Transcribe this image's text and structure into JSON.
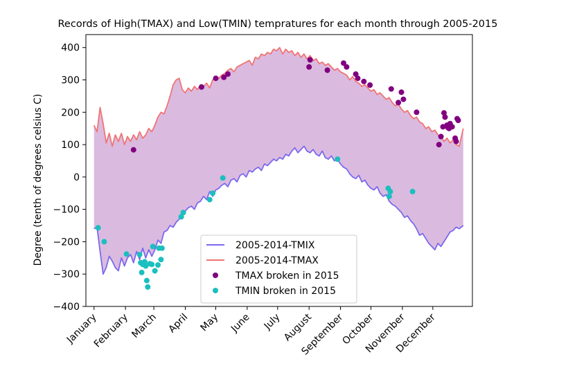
{
  "chart_data": {
    "type": "line",
    "title": "Records of High(TMAX) and Low(TMIN) tempratures for each month through 2005-2015",
    "xlabel": "",
    "ylabel": "Degree (tenth of degrees celsius C)",
    "ylim": [
      -400,
      440
    ],
    "xlim": [
      -8,
      373
    ],
    "y_ticks": [
      -400,
      -300,
      -200,
      -100,
      0,
      100,
      200,
      300,
      400
    ],
    "month_ticks": [
      {
        "label": "January",
        "day": 0
      },
      {
        "label": "February",
        "day": 31
      },
      {
        "label": "March",
        "day": 59
      },
      {
        "label": "April",
        "day": 90
      },
      {
        "label": "May",
        "day": 120
      },
      {
        "label": "June",
        "day": 151
      },
      {
        "label": "July",
        "day": 181
      },
      {
        "label": "August",
        "day": 212
      },
      {
        "label": "September",
        "day": 243
      },
      {
        "label": "October",
        "day": 273
      },
      {
        "label": "November",
        "day": 304
      },
      {
        "label": "December",
        "day": 334
      }
    ],
    "colors": {
      "tmin_line": "#7b68ee",
      "tmax_line": "#f07474",
      "fill": "#dbbadf",
      "tmax_points": "#800080",
      "tmin_points": "#1bbfbf"
    },
    "grid": false,
    "legend_position": "lower-center",
    "series": [
      {
        "name": "2005-2014-TMIX",
        "kind": "line",
        "points": [
          [
            0,
            -160
          ],
          [
            3,
            -155
          ],
          [
            6,
            -230
          ],
          [
            9,
            -300
          ],
          [
            12,
            -280
          ],
          [
            15,
            -245
          ],
          [
            18,
            -260
          ],
          [
            21,
            -280
          ],
          [
            24,
            -290
          ],
          [
            27,
            -250
          ],
          [
            30,
            -275
          ],
          [
            33,
            -250
          ],
          [
            36,
            -240
          ],
          [
            39,
            -265
          ],
          [
            42,
            -230
          ],
          [
            45,
            -255
          ],
          [
            48,
            -220
          ],
          [
            51,
            -250
          ],
          [
            54,
            -225
          ],
          [
            57,
            -245
          ],
          [
            60,
            -225
          ],
          [
            63,
            -195
          ],
          [
            66,
            -205
          ],
          [
            69,
            -170
          ],
          [
            72,
            -165
          ],
          [
            75,
            -150
          ],
          [
            78,
            -155
          ],
          [
            81,
            -140
          ],
          [
            84,
            -130
          ],
          [
            87,
            -115
          ],
          [
            90,
            -105
          ],
          [
            93,
            -95
          ],
          [
            96,
            -90
          ],
          [
            99,
            -100
          ],
          [
            102,
            -80
          ],
          [
            105,
            -75
          ],
          [
            108,
            -60
          ],
          [
            111,
            -70
          ],
          [
            114,
            -45
          ],
          [
            117,
            -60
          ],
          [
            120,
            -40
          ],
          [
            123,
            -35
          ],
          [
            126,
            -25
          ],
          [
            129,
            -20
          ],
          [
            132,
            -30
          ],
          [
            135,
            -10
          ],
          [
            138,
            -5
          ],
          [
            141,
            -15
          ],
          [
            144,
            5
          ],
          [
            147,
            10
          ],
          [
            150,
            0
          ],
          [
            153,
            20
          ],
          [
            156,
            15
          ],
          [
            159,
            25
          ],
          [
            162,
            30
          ],
          [
            165,
            20
          ],
          [
            168,
            40
          ],
          [
            171,
            35
          ],
          [
            174,
            45
          ],
          [
            177,
            55
          ],
          [
            180,
            50
          ],
          [
            183,
            60
          ],
          [
            186,
            55
          ],
          [
            189,
            70
          ],
          [
            192,
            65
          ],
          [
            195,
            80
          ],
          [
            198,
            90
          ],
          [
            201,
            75
          ],
          [
            204,
            85
          ],
          [
            207,
            95
          ],
          [
            210,
            80
          ],
          [
            213,
            75
          ],
          [
            216,
            85
          ],
          [
            219,
            70
          ],
          [
            222,
            65
          ],
          [
            225,
            80
          ],
          [
            228,
            60
          ],
          [
            231,
            55
          ],
          [
            234,
            65
          ],
          [
            237,
            50
          ],
          [
            240,
            55
          ],
          [
            243,
            40
          ],
          [
            246,
            30
          ],
          [
            249,
            25
          ],
          [
            252,
            10
          ],
          [
            255,
            0
          ],
          [
            258,
            -5
          ],
          [
            261,
            5
          ],
          [
            264,
            -15
          ],
          [
            267,
            -10
          ],
          [
            270,
            -25
          ],
          [
            273,
            -35
          ],
          [
            276,
            -40
          ],
          [
            279,
            -30
          ],
          [
            282,
            -50
          ],
          [
            285,
            -60
          ],
          [
            288,
            -55
          ],
          [
            291,
            -75
          ],
          [
            294,
            -85
          ],
          [
            297,
            -90
          ],
          [
            300,
            -100
          ],
          [
            303,
            -110
          ],
          [
            306,
            -125
          ],
          [
            309,
            -120
          ],
          [
            312,
            -135
          ],
          [
            315,
            -145
          ],
          [
            318,
            -160
          ],
          [
            321,
            -180
          ],
          [
            324,
            -175
          ],
          [
            327,
            -190
          ],
          [
            330,
            -205
          ],
          [
            333,
            -215
          ],
          [
            336,
            -225
          ],
          [
            339,
            -205
          ],
          [
            342,
            -215
          ],
          [
            345,
            -200
          ],
          [
            348,
            -185
          ],
          [
            351,
            -170
          ],
          [
            354,
            -165
          ],
          [
            357,
            -155
          ],
          [
            360,
            -160
          ],
          [
            364,
            -150
          ]
        ]
      },
      {
        "name": "2005-2014-TMAX",
        "kind": "line",
        "points": [
          [
            0,
            160
          ],
          [
            3,
            140
          ],
          [
            6,
            215
          ],
          [
            9,
            165
          ],
          [
            12,
            105
          ],
          [
            15,
            135
          ],
          [
            18,
            95
          ],
          [
            21,
            130
          ],
          [
            24,
            110
          ],
          [
            27,
            135
          ],
          [
            30,
            100
          ],
          [
            33,
            125
          ],
          [
            36,
            110
          ],
          [
            39,
            130
          ],
          [
            42,
            115
          ],
          [
            45,
            140
          ],
          [
            48,
            120
          ],
          [
            51,
            130
          ],
          [
            54,
            150
          ],
          [
            57,
            140
          ],
          [
            60,
            160
          ],
          [
            63,
            185
          ],
          [
            66,
            200
          ],
          [
            69,
            195
          ],
          [
            72,
            220
          ],
          [
            75,
            250
          ],
          [
            78,
            285
          ],
          [
            81,
            300
          ],
          [
            84,
            305
          ],
          [
            87,
            270
          ],
          [
            90,
            260
          ],
          [
            93,
            275
          ],
          [
            96,
            265
          ],
          [
            99,
            280
          ],
          [
            102,
            270
          ],
          [
            105,
            285
          ],
          [
            108,
            280
          ],
          [
            111,
            290
          ],
          [
            114,
            275
          ],
          [
            117,
            300
          ],
          [
            120,
            310
          ],
          [
            123,
            305
          ],
          [
            126,
            315
          ],
          [
            129,
            320
          ],
          [
            132,
            330
          ],
          [
            135,
            335
          ],
          [
            138,
            325
          ],
          [
            141,
            340
          ],
          [
            144,
            345
          ],
          [
            147,
            350
          ],
          [
            150,
            355
          ],
          [
            153,
            360
          ],
          [
            156,
            345
          ],
          [
            159,
            370
          ],
          [
            162,
            365
          ],
          [
            165,
            380
          ],
          [
            168,
            375
          ],
          [
            171,
            385
          ],
          [
            174,
            380
          ],
          [
            177,
            395
          ],
          [
            180,
            390
          ],
          [
            183,
            400
          ],
          [
            186,
            380
          ],
          [
            189,
            395
          ],
          [
            192,
            385
          ],
          [
            195,
            390
          ],
          [
            198,
            375
          ],
          [
            201,
            385
          ],
          [
            204,
            370
          ],
          [
            207,
            380
          ],
          [
            210,
            365
          ],
          [
            213,
            375
          ],
          [
            216,
            360
          ],
          [
            219,
            365
          ],
          [
            222,
            350
          ],
          [
            225,
            355
          ],
          [
            228,
            345
          ],
          [
            231,
            350
          ],
          [
            234,
            340
          ],
          [
            237,
            330
          ],
          [
            240,
            335
          ],
          [
            243,
            325
          ],
          [
            246,
            320
          ],
          [
            249,
            315
          ],
          [
            252,
            300
          ],
          [
            255,
            310
          ],
          [
            258,
            295
          ],
          [
            261,
            290
          ],
          [
            264,
            280
          ],
          [
            267,
            285
          ],
          [
            270,
            275
          ],
          [
            273,
            265
          ],
          [
            276,
            270
          ],
          [
            279,
            255
          ],
          [
            282,
            260
          ],
          [
            285,
            250
          ],
          [
            288,
            240
          ],
          [
            291,
            245
          ],
          [
            294,
            230
          ],
          [
            297,
            220
          ],
          [
            300,
            225
          ],
          [
            303,
            210
          ],
          [
            306,
            200
          ],
          [
            309,
            205
          ],
          [
            312,
            190
          ],
          [
            315,
            180
          ],
          [
            318,
            185
          ],
          [
            321,
            170
          ],
          [
            324,
            165
          ],
          [
            327,
            150
          ],
          [
            330,
            155
          ],
          [
            333,
            140
          ],
          [
            336,
            145
          ],
          [
            339,
            130
          ],
          [
            342,
            125
          ],
          [
            345,
            110
          ],
          [
            348,
            120
          ],
          [
            351,
            105
          ],
          [
            354,
            115
          ],
          [
            357,
            100
          ],
          [
            360,
            95
          ],
          [
            364,
            150
          ]
        ]
      },
      {
        "name": "TMAX broken in 2015",
        "kind": "scatter",
        "points": [
          [
            39,
            84
          ],
          [
            106,
            278
          ],
          [
            120,
            305
          ],
          [
            128,
            308
          ],
          [
            132,
            318
          ],
          [
            212,
            340
          ],
          [
            213,
            362
          ],
          [
            230,
            330
          ],
          [
            246,
            352
          ],
          [
            249,
            340
          ],
          [
            258,
            318
          ],
          [
            260,
            305
          ],
          [
            266,
            295
          ],
          [
            272,
            284
          ],
          [
            293,
            272
          ],
          [
            300,
            230
          ],
          [
            303,
            262
          ],
          [
            305,
            240
          ],
          [
            318,
            200
          ],
          [
            340,
            100
          ],
          [
            342,
            125
          ],
          [
            344,
            155
          ],
          [
            345,
            198
          ],
          [
            346,
            185
          ],
          [
            348,
            160
          ],
          [
            349,
            152
          ],
          [
            350,
            150
          ],
          [
            351,
            165
          ],
          [
            353,
            155
          ],
          [
            356,
            120
          ],
          [
            357,
            110
          ],
          [
            358,
            180
          ],
          [
            359,
            175
          ]
        ]
      },
      {
        "name": "TMIN broken in 2015",
        "kind": "scatter",
        "points": [
          [
            4,
            -157
          ],
          [
            10,
            -200
          ],
          [
            32,
            -238
          ],
          [
            45,
            -240
          ],
          [
            46,
            -265
          ],
          [
            47,
            -295
          ],
          [
            48,
            -270
          ],
          [
            49,
            -265
          ],
          [
            50,
            -262
          ],
          [
            51,
            -275
          ],
          [
            52,
            -320
          ],
          [
            53,
            -340
          ],
          [
            55,
            -268
          ],
          [
            57,
            -270
          ],
          [
            58,
            -215
          ],
          [
            60,
            -290
          ],
          [
            63,
            -272
          ],
          [
            64,
            -220
          ],
          [
            66,
            -255
          ],
          [
            67,
            -220
          ],
          [
            86,
            -123
          ],
          [
            88,
            -110
          ],
          [
            114,
            -70
          ],
          [
            117,
            -50
          ],
          [
            127,
            -3
          ],
          [
            240,
            55
          ],
          [
            290,
            -35
          ],
          [
            291,
            -60
          ],
          [
            292,
            -45
          ],
          [
            314,
            -45
          ]
        ]
      }
    ]
  }
}
